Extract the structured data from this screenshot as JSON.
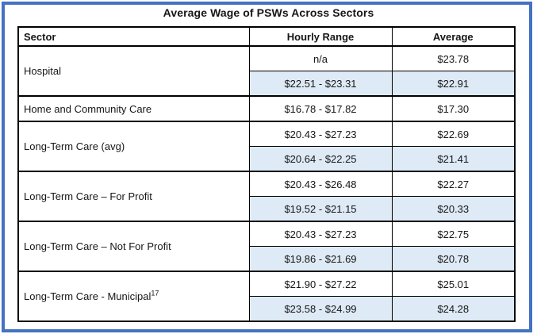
{
  "title": "Average Wage of PSWs Across Sectors",
  "table": {
    "headers": [
      "Sector",
      "Hourly Range",
      "Average"
    ],
    "groups": [
      {
        "sector": "Hospital",
        "rows": [
          {
            "range": "n/a",
            "avg": "$23.78",
            "shaded": false
          },
          {
            "range": "$22.51 - $23.31",
            "avg": "$22.91",
            "shaded": true
          }
        ]
      },
      {
        "sector": "Home and Community Care",
        "rows": [
          {
            "range": "$16.78 - $17.82",
            "avg": "$17.30",
            "shaded": false
          }
        ]
      },
      {
        "sector": "Long-Term Care (avg)",
        "rows": [
          {
            "range": "$20.43 - $27.23",
            "avg": "$22.69",
            "shaded": false
          },
          {
            "range": "$20.64 - $22.25",
            "avg": "$21.41",
            "shaded": true
          }
        ]
      },
      {
        "sector": "Long-Term Care – For Profit",
        "rows": [
          {
            "range": "$20.43 - $26.48",
            "avg": "$22.27",
            "shaded": false
          },
          {
            "range": "$19.52 - $21.15",
            "avg": "$20.33",
            "shaded": true
          }
        ]
      },
      {
        "sector": "Long-Term Care – Not For Profit",
        "rows": [
          {
            "range": "$20.43 - $27.23",
            "avg": "$22.75",
            "shaded": false
          },
          {
            "range": "$19.86 - $21.69",
            "avg": "$20.78",
            "shaded": true
          }
        ]
      },
      {
        "sector": "Long-Term Care - Municipal",
        "sup": "17",
        "rows": [
          {
            "range": "$21.90 - $27.22",
            "avg": "$25.01",
            "shaded": false
          },
          {
            "range": "$23.58 - $24.99",
            "avg": "$24.28",
            "shaded": true
          }
        ]
      }
    ]
  },
  "chart_data": {
    "type": "table",
    "title": "Average Wage of PSWs Across Sectors",
    "columns": [
      "Sector",
      "Hourly Range",
      "Average"
    ],
    "rows": [
      [
        "Hospital",
        "n/a",
        "$23.78"
      ],
      [
        "Hospital",
        "$22.51 - $23.31",
        "$22.91"
      ],
      [
        "Home and Community Care",
        "$16.78 - $17.82",
        "$17.30"
      ],
      [
        "Long-Term Care (avg)",
        "$20.43 - $27.23",
        "$22.69"
      ],
      [
        "Long-Term Care (avg)",
        "$20.64 - $22.25",
        "$21.41"
      ],
      [
        "Long-Term Care – For Profit",
        "$20.43 - $26.48",
        "$22.27"
      ],
      [
        "Long-Term Care – For Profit",
        "$19.52 - $21.15",
        "$20.33"
      ],
      [
        "Long-Term Care – Not For Profit",
        "$20.43 - $27.23",
        "$22.75"
      ],
      [
        "Long-Term Care – Not For Profit",
        "$19.86 - $21.69",
        "$20.78"
      ],
      [
        "Long-Term Care - Municipal (17)",
        "$21.90 - $27.22",
        "$25.01"
      ],
      [
        "Long-Term Care - Municipal (17)",
        "$23.58 - $24.99",
        "$24.28"
      ]
    ]
  },
  "colors": {
    "frame_border": "#4472C4",
    "row_shade": "#DEEAF6",
    "table_border": "#000000",
    "text": "#161616"
  }
}
